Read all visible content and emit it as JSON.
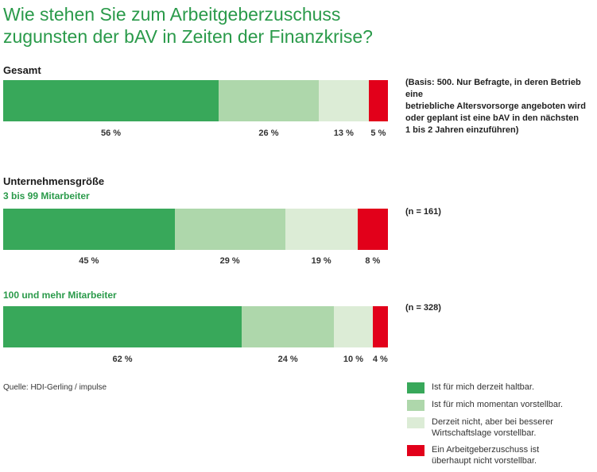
{
  "title": {
    "line1": "Wie stehen Sie zum Arbeitgeberzuschuss",
    "line2": "zugunsten der bAV in Zeiten der Finanzkrise?"
  },
  "colors": {
    "title_green": "#2a9a4a",
    "dark_green": "#38a85a",
    "light_green": "#aed7ab",
    "pale_green": "#dcecd6",
    "red": "#e2001a"
  },
  "source": "Quelle: HDI-Gerling / impulse",
  "chart_data": {
    "type": "bar",
    "orientation": "horizontal-stacked-100",
    "groups": [
      {
        "section": "Gesamt",
        "label": "",
        "note": [
          "(Basis: 500. Nur Befragte, in deren Betrieb eine",
          "betriebliche Altersvorsorge angeboten wird",
          "oder geplant ist eine bAV in den nächsten",
          "1 bis 2 Jahren einzuführen)"
        ],
        "values": [
          56,
          26,
          13,
          5
        ],
        "labels": [
          "56 %",
          "26 %",
          "13 %",
          "5 %"
        ]
      },
      {
        "section": "Unternehmensgröße",
        "label": "3 bis 99 Mitarbeiter",
        "note": [
          "(n = 161)"
        ],
        "values": [
          45,
          29,
          19,
          8
        ],
        "labels": [
          "45 %",
          "29 %",
          "19 %",
          "8 %"
        ]
      },
      {
        "section": "",
        "label": "100 und mehr Mitarbeiter",
        "note": [
          "(n = 328)"
        ],
        "values": [
          62,
          24,
          10,
          4
        ],
        "labels": [
          "62 %",
          "24 %",
          "10 %",
          "4 %"
        ]
      }
    ],
    "series": [
      {
        "name": "Ist für mich derzeit haltbar.",
        "color": "#38a85a"
      },
      {
        "name": "Ist für mich momentan vorstellbar.",
        "color": "#aed7ab"
      },
      {
        "name": "Derzeit nicht, aber bei besserer Wirtschaftslage vorstellbar.",
        "color": "#dcecd6"
      },
      {
        "name": "Ein Arbeitgeberzuschuss ist überhaupt nicht vorstellbar.",
        "color": "#e2001a"
      }
    ]
  },
  "legend": [
    {
      "lines": [
        "Ist für mich derzeit haltbar."
      ]
    },
    {
      "lines": [
        "Ist für mich momentan vorstellbar."
      ]
    },
    {
      "lines": [
        "Derzeit nicht, aber bei besserer",
        "Wirtschaftslage vorstellbar."
      ]
    },
    {
      "lines": [
        "Ein Arbeitgeberzuschuss ist",
        "überhaupt nicht vorstellbar."
      ]
    }
  ]
}
